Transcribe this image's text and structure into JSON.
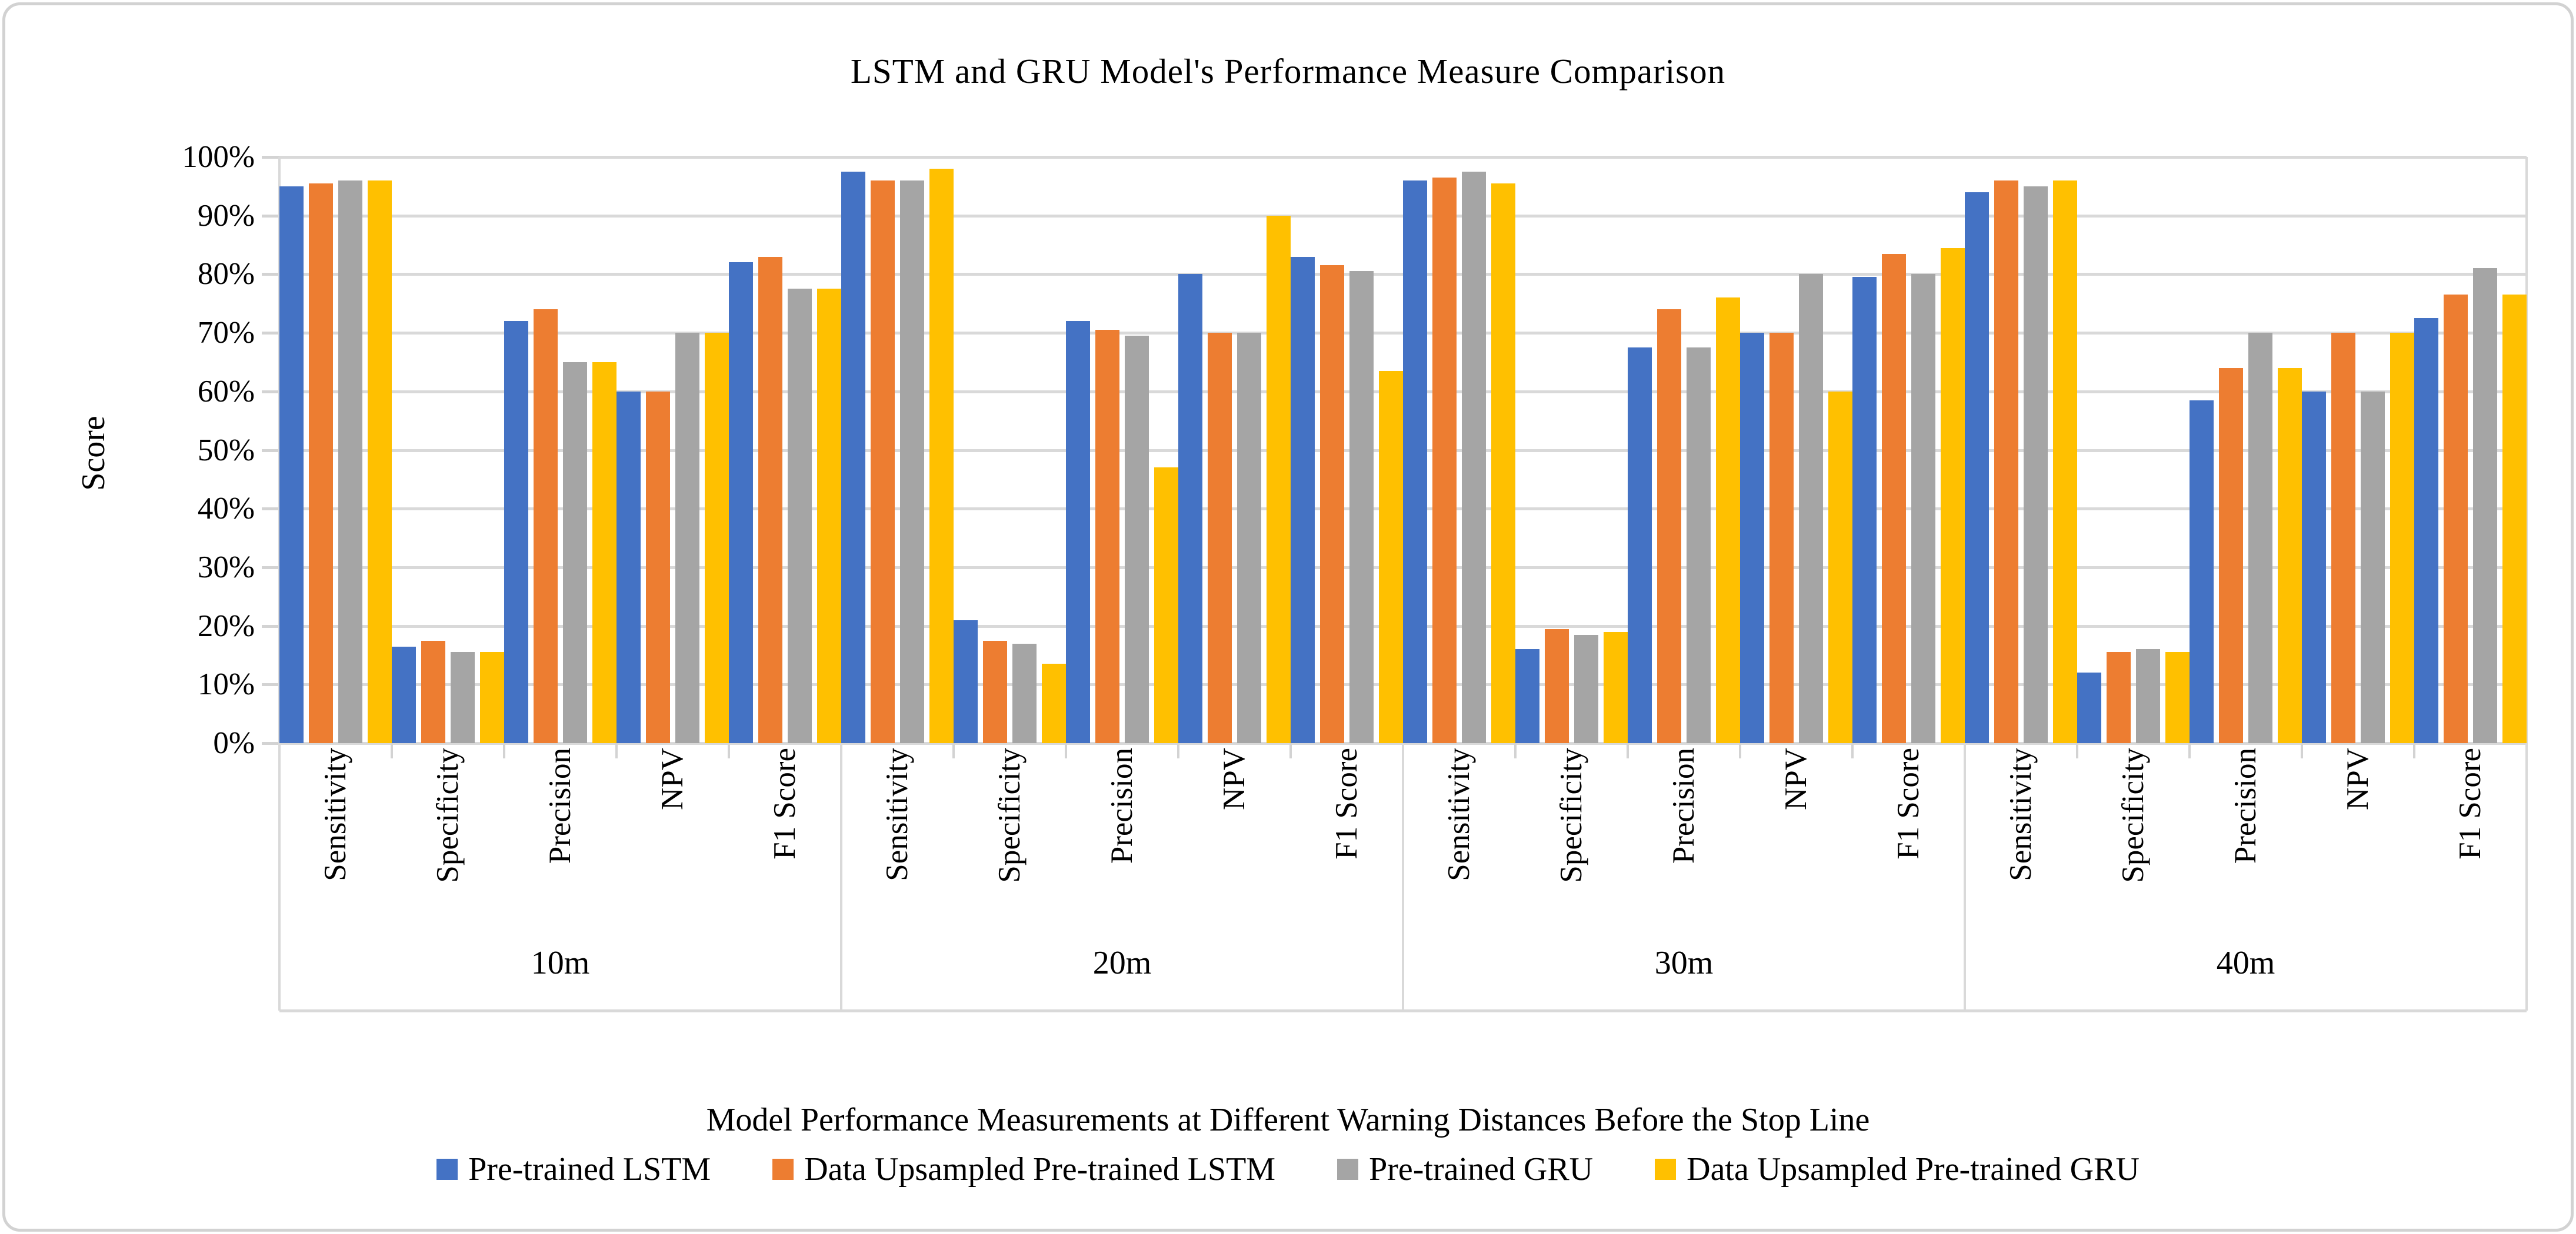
{
  "chart_title": "LSTM and GRU Model's Performance Measure Comparison",
  "y_axis": {
    "title": "Score",
    "tick_labels": [
      "0%",
      "10%",
      "20%",
      "30%",
      "40%",
      "50%",
      "60%",
      "70%",
      "80%",
      "90%",
      "100%"
    ]
  },
  "x_axis": {
    "title": "Model Performance Measurements at Different Warning Distances Before the Stop Line"
  },
  "legend": {
    "position": "bottom",
    "items": [
      {
        "label": "Pre-trained LSTM",
        "color": "#4472C4"
      },
      {
        "label": "Data Upsampled Pre-trained LSTM",
        "color": "#ED7D31"
      },
      {
        "label": "Pre-trained GRU",
        "color": "#A5A5A5"
      },
      {
        "label": "Data Upsampled Pre-trained GRU",
        "color": "#FFC000"
      }
    ]
  },
  "style_colors": {
    "gridline": "#D9D9D9",
    "axis_line": "#D3D3D3",
    "frame_border": "#D2D2D2",
    "text": "#000000"
  },
  "chart_data": {
    "type": "bar",
    "title": "LSTM and GRU Model's Performance Measure Comparison",
    "xlabel": "Model Performance Measurements at Different Warning Distances Before the Stop Line",
    "ylabel": "Score",
    "ylim": [
      0,
      100
    ],
    "y_step": 10,
    "grid": true,
    "legend_position": "bottom",
    "categories_level1": [
      "Sensitivity",
      "Specificity",
      "Precision",
      "NPV",
      "F1 Score"
    ],
    "categories_level2": [
      "10m",
      "20m",
      "30m",
      "40m"
    ],
    "value_unit": "%",
    "series": [
      {
        "name": "Pre-trained LSTM",
        "color": "#4472C4",
        "values": [
          95,
          16.5,
          72,
          60,
          82,
          97.5,
          21,
          72,
          80,
          83,
          96,
          16,
          67.5,
          70,
          79.5,
          94,
          12,
          58.5,
          60,
          72.5
        ]
      },
      {
        "name": "Data Upsampled Pre-trained LSTM",
        "color": "#ED7D31",
        "values": [
          95.5,
          17.5,
          74,
          60,
          83,
          96,
          17.5,
          70.5,
          70,
          81.5,
          96.5,
          19.5,
          74,
          70,
          83.5,
          96,
          15.5,
          64,
          70,
          76.5
        ]
      },
      {
        "name": "Pre-trained GRU",
        "color": "#A5A5A5",
        "values": [
          96,
          15.5,
          65,
          70,
          77.5,
          96,
          17,
          69.5,
          70,
          80.5,
          97.5,
          18.5,
          67.5,
          80,
          80,
          95,
          16,
          70,
          60,
          81
        ]
      },
      {
        "name": "Data Upsampled Pre-trained GRU",
        "color": "#FFC000",
        "values": [
          96,
          15.5,
          65,
          70,
          77.5,
          98,
          13.5,
          47,
          90,
          63.5,
          95.5,
          19,
          76,
          60,
          84.5,
          96,
          15.5,
          64,
          70,
          76.5
        ]
      }
    ]
  }
}
